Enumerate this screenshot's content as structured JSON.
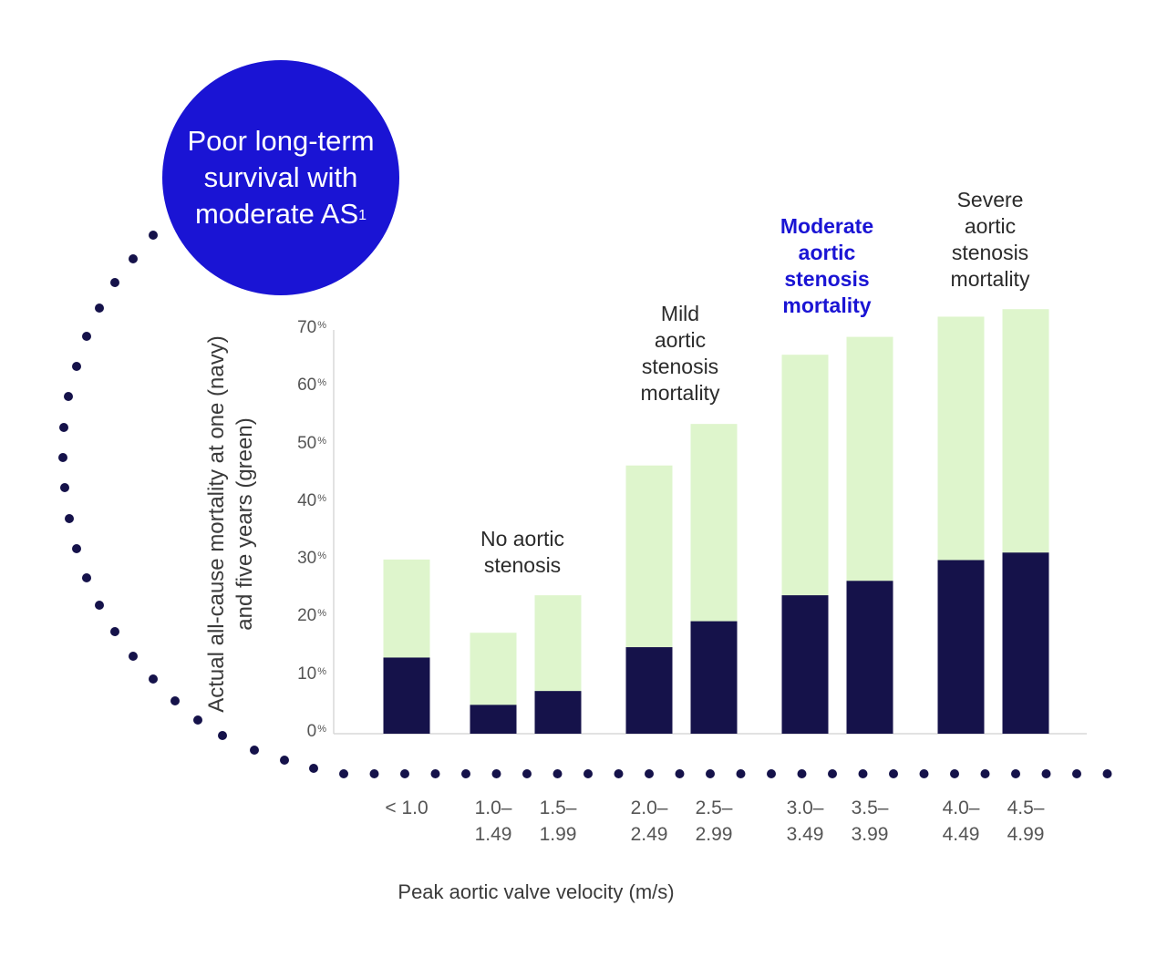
{
  "callout": {
    "text": "Poor long-term survival with moderate AS",
    "superscript": "1"
  },
  "chart_data": {
    "type": "bar",
    "ylabel": "Actual all-cause mortality at one (navy) and five years (green)",
    "xlabel": "Peak aortic valve velocity (m/s)",
    "ylim": [
      0,
      70
    ],
    "yticks": [
      "0%",
      "10%",
      "20%",
      "30%",
      "40%",
      "50%",
      "60%",
      "70%"
    ],
    "categories": [
      "< 1.0",
      "1.0–1.49",
      "1.5–1.99",
      "2.0–2.49",
      "2.5–2.99",
      "3.0–3.49",
      "3.5–3.99",
      "4.0–4.49",
      "4.5–4.99"
    ],
    "category_lines": [
      [
        "< 1.0"
      ],
      [
        "1.0–",
        "1.49"
      ],
      [
        "1.5–",
        "1.99"
      ],
      [
        "2.0–",
        "2.49"
      ],
      [
        "2.5–",
        "2.99"
      ],
      [
        "3.0–",
        "3.49"
      ],
      [
        "3.5–",
        "3.99"
      ],
      [
        "4.0–",
        "4.49"
      ],
      [
        "4.5–",
        "4.99"
      ]
    ],
    "series": [
      {
        "name": "One-year mortality",
        "color": "#15124a",
        "values": [
          13.2,
          5.0,
          7.4,
          15.0,
          19.5,
          24.0,
          26.5,
          30.1,
          31.4
        ]
      },
      {
        "name": "Five-year mortality",
        "color": "#def5cc",
        "values": [
          30.2,
          17.5,
          24.0,
          46.5,
          53.7,
          65.7,
          68.8,
          72.3,
          73.6
        ]
      }
    ],
    "group_labels": [
      {
        "lines": [
          "No aortic",
          "stenosis"
        ],
        "highlight": false
      },
      {
        "lines": [
          "Mild",
          "aortic",
          "stenosis",
          "mortality"
        ],
        "highlight": false
      },
      {
        "lines": [
          "Moderate",
          "aortic",
          "stenosis",
          "mortality"
        ],
        "highlight": true
      },
      {
        "lines": [
          "Severe",
          "aortic",
          "stenosis",
          "mortality"
        ],
        "highlight": false
      }
    ]
  },
  "colors": {
    "callout": "#1a14d4",
    "dots": "#15124a",
    "axis": "#d8d8d8"
  }
}
